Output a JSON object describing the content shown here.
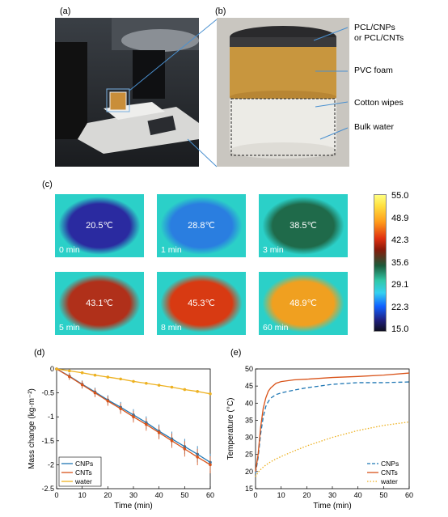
{
  "panel_labels": {
    "a": "(a)",
    "b": "(b)",
    "c": "(c)",
    "d": "(d)",
    "e": "(e)"
  },
  "photo_b_annotations": [
    "PCL/CNPs",
    "or PCL/CNTs",
    "PVC foam",
    "Cotton wipes",
    "Bulk water"
  ],
  "thermal_images": [
    {
      "temp": "20.5℃",
      "time": "0 min",
      "color": "#2a2aa0"
    },
    {
      "temp": "28.8℃",
      "time": "1 min",
      "color": "#2a7ee0"
    },
    {
      "temp": "38.5℃",
      "time": "3 min",
      "color": "#1f6a4a"
    },
    {
      "temp": "43.1℃",
      "time": "5 min",
      "color": "#b0301a"
    },
    {
      "temp": "45.3℃",
      "time": "8 min",
      "color": "#d83a12"
    },
    {
      "temp": "48.9℃",
      "time": "60 min",
      "color": "#f0a020"
    }
  ],
  "colorbar_ticks": [
    "55.0",
    "48.9",
    "42.3",
    "35.6",
    "29.1",
    "22.3",
    "15.0"
  ],
  "chart_data": [
    {
      "type": "line",
      "xlabel": "Time (min)",
      "ylabel": "Mass change (kg·m⁻²)",
      "xlim": [
        0,
        60
      ],
      "ylim": [
        -2.5,
        0
      ],
      "xticks": [
        "0",
        "10",
        "20",
        "30",
        "40",
        "50",
        "60"
      ],
      "yticks": [
        "0",
        "-0.5",
        "-1",
        "-1.5",
        "-2",
        "-2.5"
      ],
      "legend_position": "bottom-left",
      "x": [
        0,
        5,
        10,
        15,
        20,
        25,
        30,
        35,
        40,
        45,
        50,
        55,
        60
      ],
      "series": [
        {
          "name": "CNPs",
          "color": "#1f77b4",
          "values": [
            0,
            -0.15,
            -0.32,
            -0.48,
            -0.65,
            -0.8,
            -0.96,
            -1.12,
            -1.3,
            -1.46,
            -1.62,
            -1.78,
            -1.95
          ]
        },
        {
          "name": "CNTs",
          "color": "#d95319",
          "values": [
            0,
            -0.16,
            -0.33,
            -0.5,
            -0.67,
            -0.83,
            -1.0,
            -1.16,
            -1.33,
            -1.5,
            -1.67,
            -1.84,
            -2.0
          ]
        },
        {
          "name": "water",
          "color": "#edb120",
          "values": [
            0,
            -0.04,
            -0.08,
            -0.13,
            -0.17,
            -0.21,
            -0.26,
            -0.3,
            -0.34,
            -0.38,
            -0.43,
            -0.47,
            -0.52
          ]
        }
      ]
    },
    {
      "type": "line",
      "xlabel": "Time (min)",
      "ylabel": "Temperature (°C)",
      "xlim": [
        0,
        60
      ],
      "ylim": [
        15,
        50
      ],
      "xticks": [
        "0",
        "10",
        "20",
        "30",
        "40",
        "50",
        "60"
      ],
      "yticks": [
        "15",
        "20",
        "25",
        "30",
        "35",
        "40",
        "45",
        "50"
      ],
      "legend_position": "bottom-right",
      "x": [
        0,
        1,
        2,
        3,
        4,
        5,
        6,
        8,
        10,
        15,
        20,
        30,
        40,
        50,
        60
      ],
      "series": [
        {
          "name": "CNPs",
          "color": "#1f77b4",
          "style": "dashed",
          "values": [
            19.5,
            24,
            31,
            36,
            39,
            40.5,
            41.5,
            42.5,
            43,
            43.8,
            44.5,
            45.5,
            46,
            46,
            46.2
          ]
        },
        {
          "name": "CNTs",
          "color": "#d95319",
          "style": "solid",
          "values": [
            20,
            25,
            33,
            38.5,
            41.5,
            43.5,
            44.5,
            45.8,
            46.3,
            46.8,
            47,
            47.5,
            47.8,
            48.2,
            48.8
          ]
        },
        {
          "name": "water",
          "color": "#edb120",
          "style": "dotted",
          "values": [
            18.5,
            19.8,
            20.6,
            21.3,
            21.9,
            22.4,
            22.9,
            23.7,
            24.4,
            26,
            27.5,
            30,
            32,
            33.5,
            34.5
          ]
        }
      ]
    }
  ]
}
